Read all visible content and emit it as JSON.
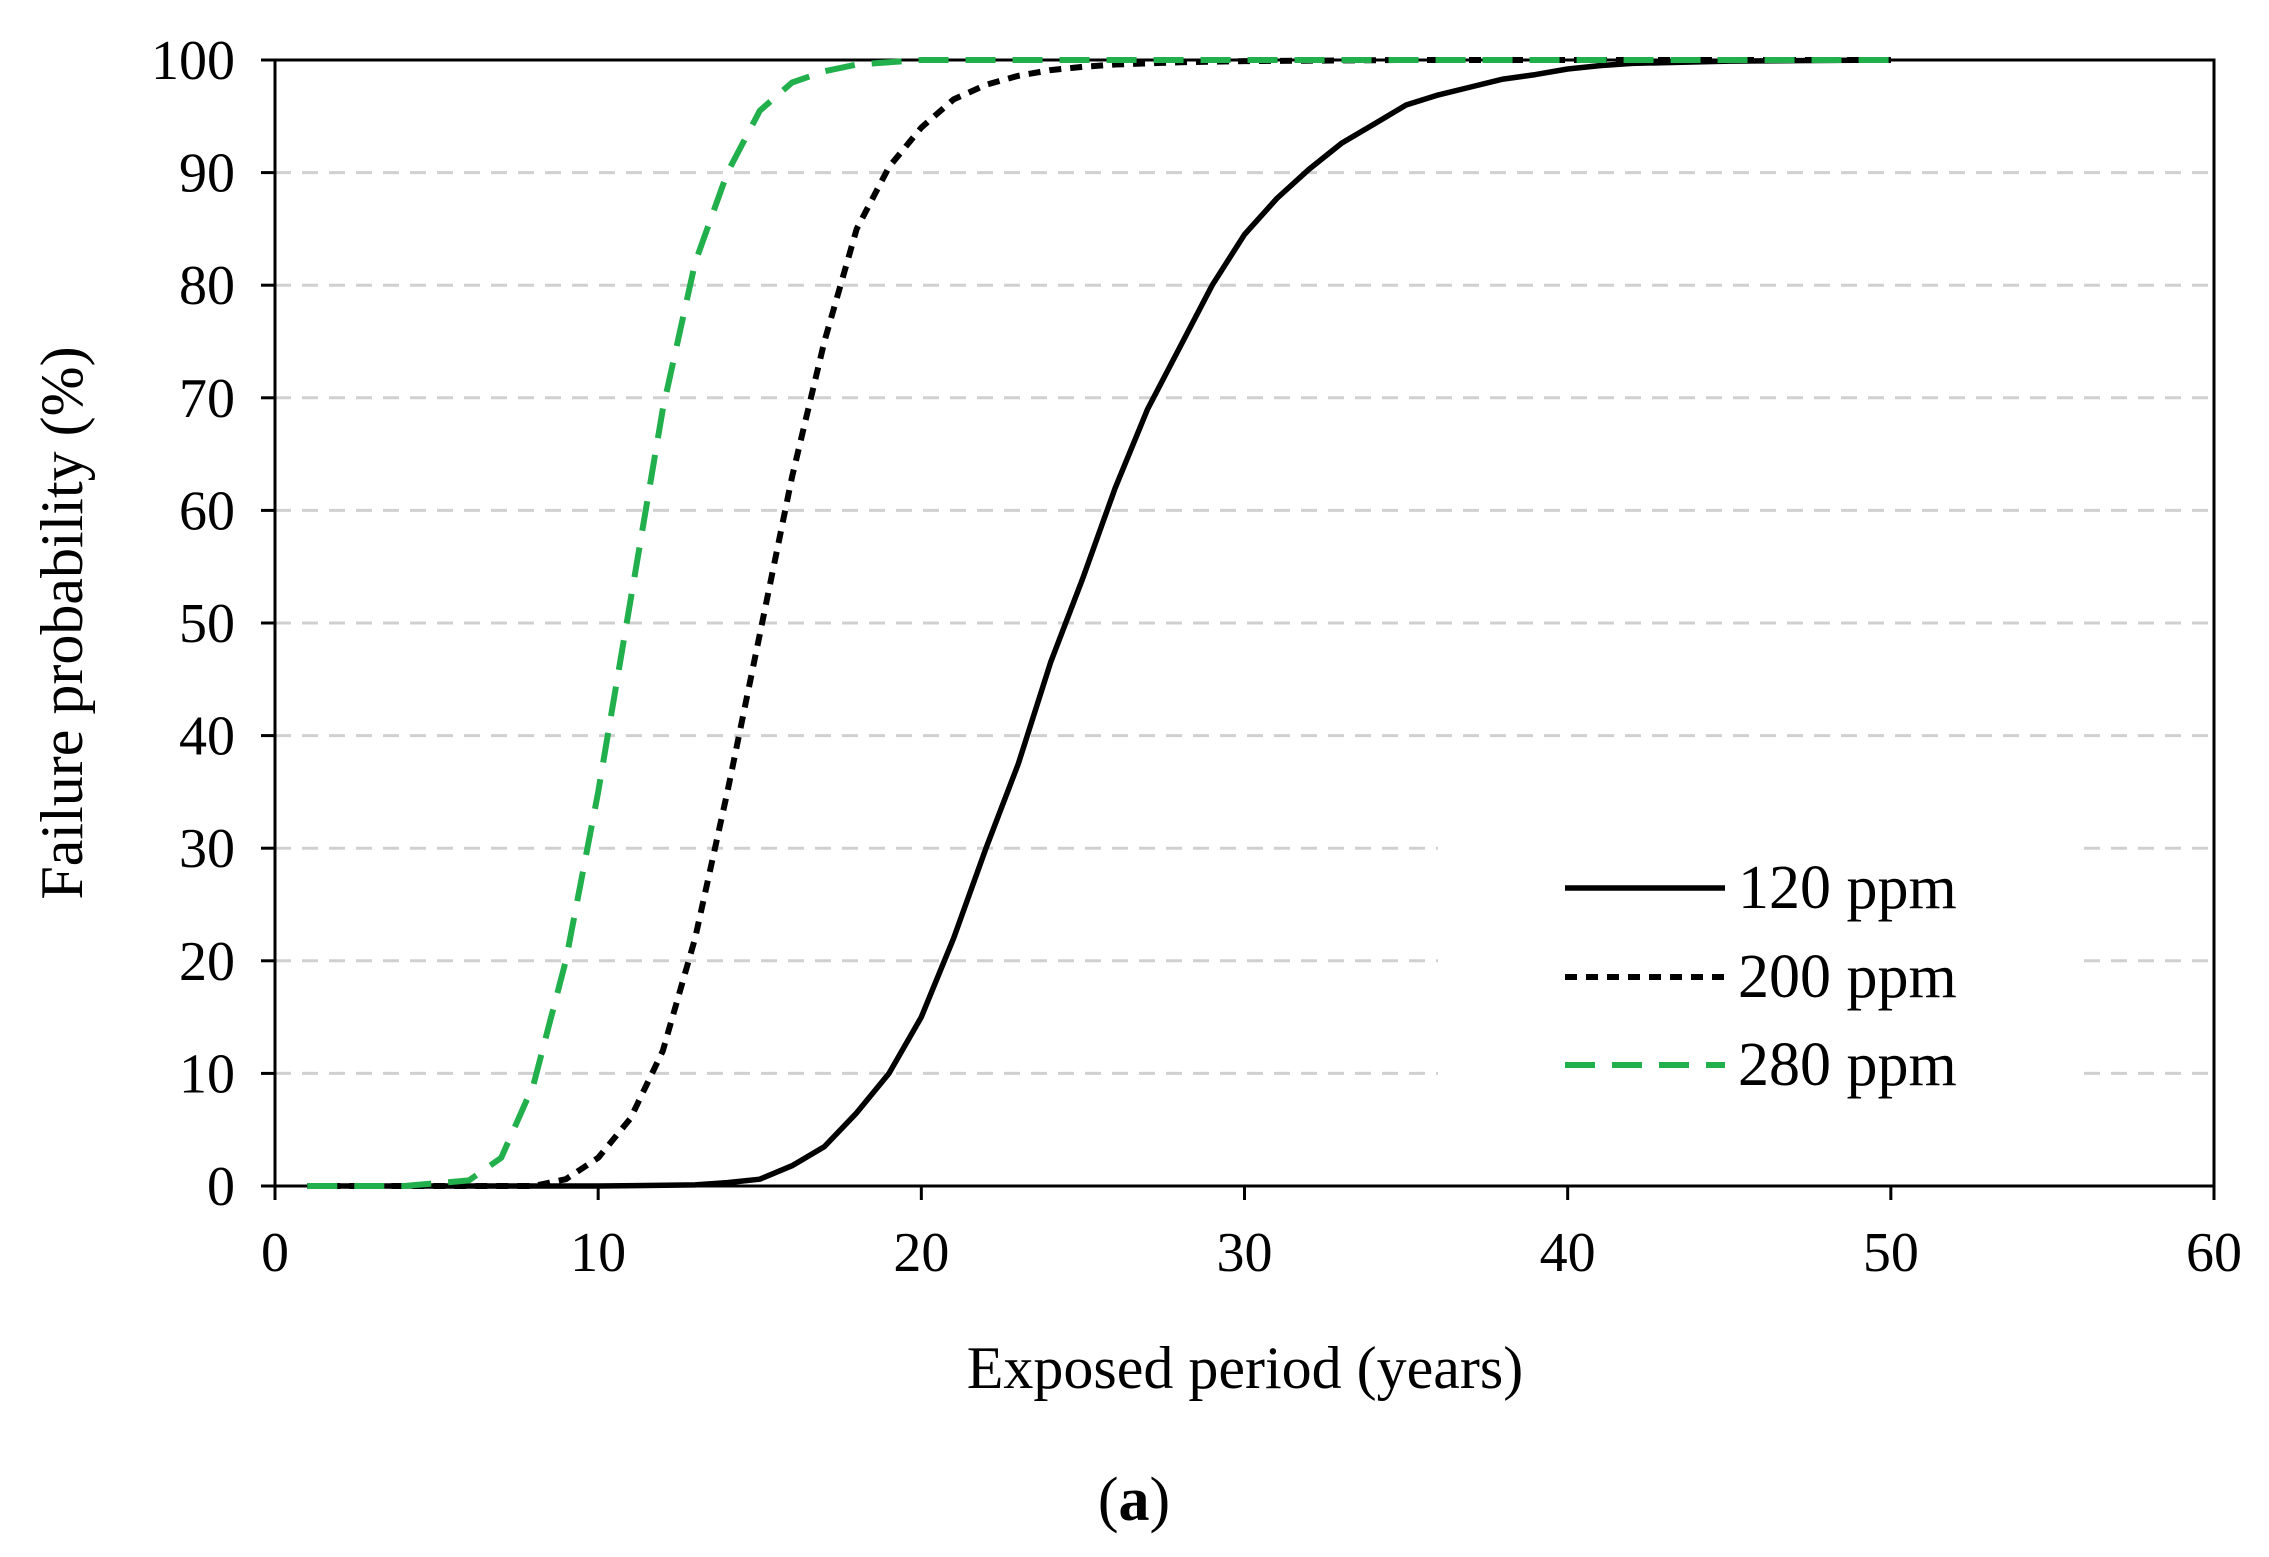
{
  "chart_data": {
    "type": "line",
    "title": "",
    "xlabel": "Exposed period (years)",
    "ylabel": "Failure probability (%)",
    "xlim": [
      0,
      60
    ],
    "ylim": [
      0,
      100
    ],
    "xticks": [
      0,
      10,
      20,
      30,
      40,
      50,
      60
    ],
    "yticks": [
      0,
      10,
      20,
      30,
      40,
      50,
      60,
      70,
      80,
      90,
      100
    ],
    "grid": "horizontal-dashed",
    "legend_position": "bottom-right",
    "caption": {
      "open": "(",
      "label": "a",
      "close": ")"
    },
    "series": [
      {
        "name": "120 ppm",
        "style": "solid",
        "color": "#000000",
        "x": [
          1,
          5,
          10,
          13,
          14,
          15,
          16,
          17,
          18,
          19,
          20,
          21,
          22,
          23,
          24,
          25,
          26,
          27,
          28,
          29,
          30,
          31,
          32,
          33,
          34,
          35,
          36,
          37,
          38,
          39,
          40,
          41,
          42,
          45,
          50
        ],
        "y": [
          0,
          0,
          0,
          0.1,
          0.3,
          0.6,
          1.8,
          3.5,
          6.5,
          10.0,
          15.0,
          22.0,
          30.0,
          37.5,
          46.5,
          54.0,
          62.0,
          69.0,
          74.5,
          80.0,
          84.5,
          87.7,
          90.3,
          92.6,
          94.3,
          96.0,
          96.9,
          97.6,
          98.3,
          98.7,
          99.2,
          99.5,
          99.7,
          99.9,
          100
        ]
      },
      {
        "name": "200 ppm",
        "style": "dotted",
        "color": "#000000",
        "x": [
          1,
          5,
          8,
          9,
          10,
          11,
          12,
          13,
          14,
          15,
          16,
          17,
          18,
          19,
          20,
          21,
          22,
          23,
          24,
          25,
          26,
          28,
          30,
          35,
          40,
          45,
          50
        ],
        "y": [
          0,
          0,
          0,
          0.6,
          2.5,
          6.0,
          12.0,
          22.0,
          35.0,
          49.0,
          63.0,
          75.0,
          85.0,
          90.5,
          94.0,
          96.5,
          97.8,
          98.6,
          99.1,
          99.4,
          99.6,
          99.8,
          99.9,
          100,
          100,
          100,
          100
        ]
      },
      {
        "name": "280 ppm",
        "style": "dashed",
        "color": "#21b04b",
        "x": [
          1,
          4,
          6,
          7,
          8,
          9,
          10,
          11,
          12,
          13,
          14,
          15,
          16,
          17,
          18,
          20,
          25,
          30,
          40,
          50
        ],
        "y": [
          0,
          0,
          0.5,
          2.5,
          9.0,
          20.0,
          35.0,
          52.0,
          69.0,
          82.0,
          90.0,
          95.5,
          98.0,
          99.0,
          99.6,
          100,
          100,
          100,
          100,
          100
        ]
      }
    ]
  }
}
